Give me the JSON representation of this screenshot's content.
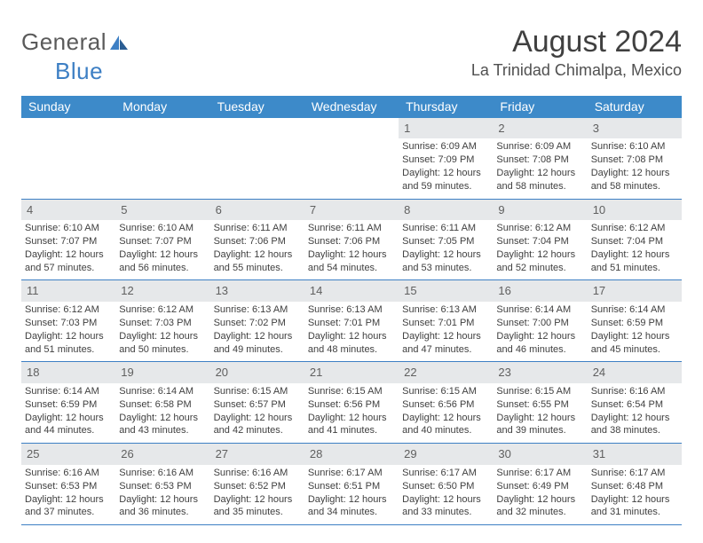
{
  "logo": {
    "general": "General",
    "blue": "Blue"
  },
  "title": "August 2024",
  "subtitle": "La Trinidad Chimalpa, Mexico",
  "colors": {
    "header_bg": "#3d8ac9",
    "header_text": "#ffffff",
    "daynum_bg": "#e6e8ea",
    "border": "#3d7fc4",
    "body_text": "#404040",
    "logo_gray": "#5a5a5a",
    "logo_blue": "#3d7fc4"
  },
  "day_labels": [
    "Sunday",
    "Monday",
    "Tuesday",
    "Wednesday",
    "Thursday",
    "Friday",
    "Saturday"
  ],
  "weeks": [
    [
      {
        "n": "",
        "lines": [
          "",
          "",
          "",
          ""
        ]
      },
      {
        "n": "",
        "lines": [
          "",
          "",
          "",
          ""
        ]
      },
      {
        "n": "",
        "lines": [
          "",
          "",
          "",
          ""
        ]
      },
      {
        "n": "",
        "lines": [
          "",
          "",
          "",
          ""
        ]
      },
      {
        "n": "1",
        "lines": [
          "Sunrise: 6:09 AM",
          "Sunset: 7:09 PM",
          "Daylight: 12 hours",
          "and 59 minutes."
        ]
      },
      {
        "n": "2",
        "lines": [
          "Sunrise: 6:09 AM",
          "Sunset: 7:08 PM",
          "Daylight: 12 hours",
          "and 58 minutes."
        ]
      },
      {
        "n": "3",
        "lines": [
          "Sunrise: 6:10 AM",
          "Sunset: 7:08 PM",
          "Daylight: 12 hours",
          "and 58 minutes."
        ]
      }
    ],
    [
      {
        "n": "4",
        "lines": [
          "Sunrise: 6:10 AM",
          "Sunset: 7:07 PM",
          "Daylight: 12 hours",
          "and 57 minutes."
        ]
      },
      {
        "n": "5",
        "lines": [
          "Sunrise: 6:10 AM",
          "Sunset: 7:07 PM",
          "Daylight: 12 hours",
          "and 56 minutes."
        ]
      },
      {
        "n": "6",
        "lines": [
          "Sunrise: 6:11 AM",
          "Sunset: 7:06 PM",
          "Daylight: 12 hours",
          "and 55 minutes."
        ]
      },
      {
        "n": "7",
        "lines": [
          "Sunrise: 6:11 AM",
          "Sunset: 7:06 PM",
          "Daylight: 12 hours",
          "and 54 minutes."
        ]
      },
      {
        "n": "8",
        "lines": [
          "Sunrise: 6:11 AM",
          "Sunset: 7:05 PM",
          "Daylight: 12 hours",
          "and 53 minutes."
        ]
      },
      {
        "n": "9",
        "lines": [
          "Sunrise: 6:12 AM",
          "Sunset: 7:04 PM",
          "Daylight: 12 hours",
          "and 52 minutes."
        ]
      },
      {
        "n": "10",
        "lines": [
          "Sunrise: 6:12 AM",
          "Sunset: 7:04 PM",
          "Daylight: 12 hours",
          "and 51 minutes."
        ]
      }
    ],
    [
      {
        "n": "11",
        "lines": [
          "Sunrise: 6:12 AM",
          "Sunset: 7:03 PM",
          "Daylight: 12 hours",
          "and 51 minutes."
        ]
      },
      {
        "n": "12",
        "lines": [
          "Sunrise: 6:12 AM",
          "Sunset: 7:03 PM",
          "Daylight: 12 hours",
          "and 50 minutes."
        ]
      },
      {
        "n": "13",
        "lines": [
          "Sunrise: 6:13 AM",
          "Sunset: 7:02 PM",
          "Daylight: 12 hours",
          "and 49 minutes."
        ]
      },
      {
        "n": "14",
        "lines": [
          "Sunrise: 6:13 AM",
          "Sunset: 7:01 PM",
          "Daylight: 12 hours",
          "and 48 minutes."
        ]
      },
      {
        "n": "15",
        "lines": [
          "Sunrise: 6:13 AM",
          "Sunset: 7:01 PM",
          "Daylight: 12 hours",
          "and 47 minutes."
        ]
      },
      {
        "n": "16",
        "lines": [
          "Sunrise: 6:14 AM",
          "Sunset: 7:00 PM",
          "Daylight: 12 hours",
          "and 46 minutes."
        ]
      },
      {
        "n": "17",
        "lines": [
          "Sunrise: 6:14 AM",
          "Sunset: 6:59 PM",
          "Daylight: 12 hours",
          "and 45 minutes."
        ]
      }
    ],
    [
      {
        "n": "18",
        "lines": [
          "Sunrise: 6:14 AM",
          "Sunset: 6:59 PM",
          "Daylight: 12 hours",
          "and 44 minutes."
        ]
      },
      {
        "n": "19",
        "lines": [
          "Sunrise: 6:14 AM",
          "Sunset: 6:58 PM",
          "Daylight: 12 hours",
          "and 43 minutes."
        ]
      },
      {
        "n": "20",
        "lines": [
          "Sunrise: 6:15 AM",
          "Sunset: 6:57 PM",
          "Daylight: 12 hours",
          "and 42 minutes."
        ]
      },
      {
        "n": "21",
        "lines": [
          "Sunrise: 6:15 AM",
          "Sunset: 6:56 PM",
          "Daylight: 12 hours",
          "and 41 minutes."
        ]
      },
      {
        "n": "22",
        "lines": [
          "Sunrise: 6:15 AM",
          "Sunset: 6:56 PM",
          "Daylight: 12 hours",
          "and 40 minutes."
        ]
      },
      {
        "n": "23",
        "lines": [
          "Sunrise: 6:15 AM",
          "Sunset: 6:55 PM",
          "Daylight: 12 hours",
          "and 39 minutes."
        ]
      },
      {
        "n": "24",
        "lines": [
          "Sunrise: 6:16 AM",
          "Sunset: 6:54 PM",
          "Daylight: 12 hours",
          "and 38 minutes."
        ]
      }
    ],
    [
      {
        "n": "25",
        "lines": [
          "Sunrise: 6:16 AM",
          "Sunset: 6:53 PM",
          "Daylight: 12 hours",
          "and 37 minutes."
        ]
      },
      {
        "n": "26",
        "lines": [
          "Sunrise: 6:16 AM",
          "Sunset: 6:53 PM",
          "Daylight: 12 hours",
          "and 36 minutes."
        ]
      },
      {
        "n": "27",
        "lines": [
          "Sunrise: 6:16 AM",
          "Sunset: 6:52 PM",
          "Daylight: 12 hours",
          "and 35 minutes."
        ]
      },
      {
        "n": "28",
        "lines": [
          "Sunrise: 6:17 AM",
          "Sunset: 6:51 PM",
          "Daylight: 12 hours",
          "and 34 minutes."
        ]
      },
      {
        "n": "29",
        "lines": [
          "Sunrise: 6:17 AM",
          "Sunset: 6:50 PM",
          "Daylight: 12 hours",
          "and 33 minutes."
        ]
      },
      {
        "n": "30",
        "lines": [
          "Sunrise: 6:17 AM",
          "Sunset: 6:49 PM",
          "Daylight: 12 hours",
          "and 32 minutes."
        ]
      },
      {
        "n": "31",
        "lines": [
          "Sunrise: 6:17 AM",
          "Sunset: 6:48 PM",
          "Daylight: 12 hours",
          "and 31 minutes."
        ]
      }
    ]
  ]
}
